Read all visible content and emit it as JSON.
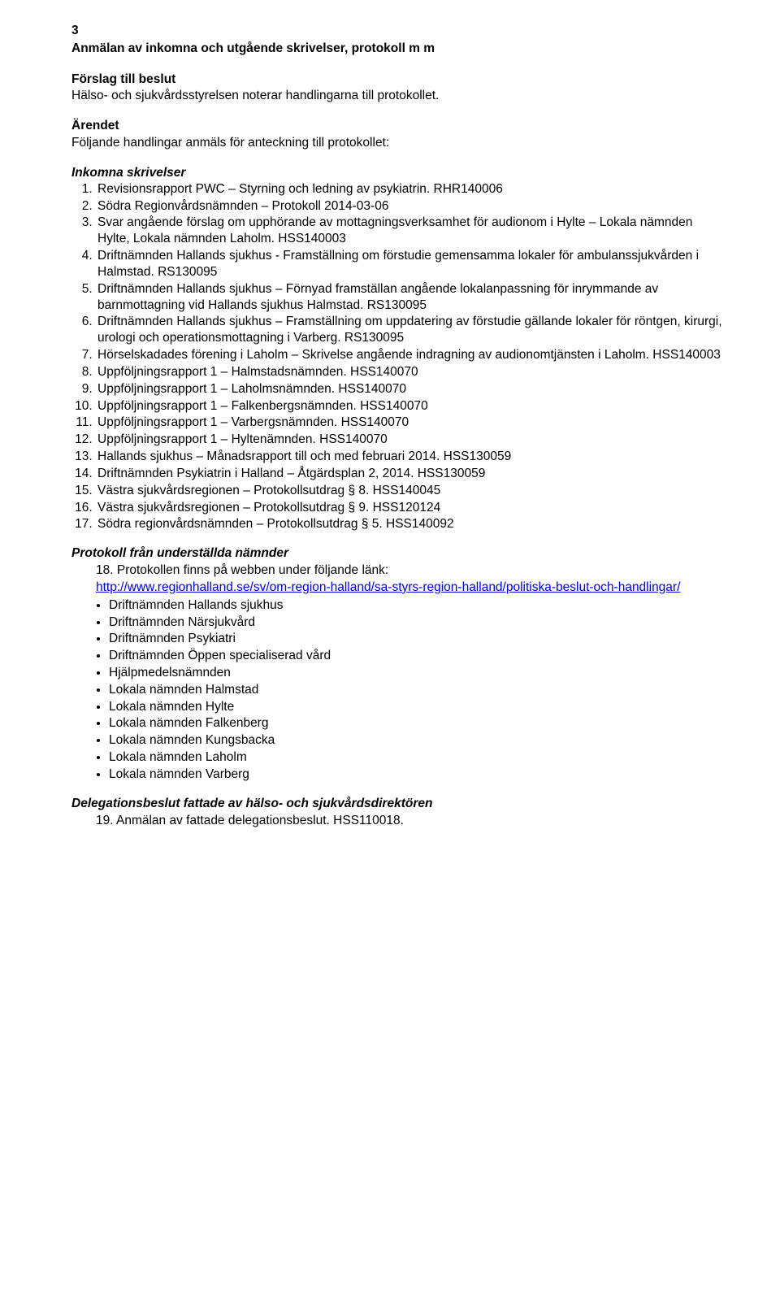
{
  "page_number": "3",
  "title": "Anmälan av inkomna och utgående skrivelser, protokoll m m",
  "forslag_head": "Förslag till beslut",
  "forslag_text": "Hälso- och sjukvårdsstyrelsen noterar handlingarna till protokollet.",
  "arendet_head": "Ärendet",
  "arendet_text": "Följande handlingar anmäls för anteckning till protokollet:",
  "inkomna_head": "Inkomna skrivelser",
  "inkomna": [
    "Revisionsrapport PWC – Styrning och ledning av psykiatrin. RHR140006",
    "Södra Regionvårdsnämnden – Protokoll 2014-03-06",
    "Svar angående förslag om upphörande av mottagningsverksamhet för audionom i Hylte – Lokala nämnden Hylte, Lokala nämnden Laholm. HSS140003",
    "Driftnämnden Hallands sjukhus - Framställning om förstudie gemensamma lokaler för ambulanssjukvården i Halmstad. RS130095",
    "Driftnämnden Hallands sjukhus – Förnyad framställan angående lokalanpassning för inrymmande av barnmottagning vid Hallands sjukhus Halmstad. RS130095",
    "Driftnämnden Hallands sjukhus – Framställning om uppdatering av förstudie gällande lokaler för röntgen, kirurgi, urologi och operationsmottagning i Varberg. RS130095",
    "Hörselskadades förening i Laholm – Skrivelse angående indragning av audionomtjänsten i Laholm. HSS140003",
    "Uppföljningsrapport 1 – Halmstadsnämnden. HSS140070",
    "Uppföljningsrapport 1 – Laholmsnämnden. HSS140070",
    "Uppföljningsrapport 1 – Falkenbergsnämnden. HSS140070",
    "Uppföljningsrapport 1 – Varbergsnämnden. HSS140070",
    "Uppföljningsrapport 1 – Hyltenämnden. HSS140070",
    "Hallands sjukhus – Månadsrapport till och med februari 2014. HSS130059",
    "Driftnämnden Psykiatrin i Halland – Åtgärdsplan 2, 2014. HSS130059",
    "Västra sjukvårdsregionen – Protokollsutdrag § 8. HSS140045",
    "Västra sjukvårdsregionen – Protokollsutdrag § 9. HSS120124",
    "Södra regionvårdsnämnden – Protokollsutdrag § 5. HSS140092"
  ],
  "protokoll_head": "Protokoll från underställda nämnder",
  "protokoll_item_prefix": "18. Protokollen finns på webben under följande länk:",
  "protokoll_link_text": "http://www.regionhalland.se/sv/om-region-halland/sa-styrs-region-halland/politiska-beslut-och-handlingar/",
  "bullets": [
    "Driftnämnden Hallands sjukhus",
    "Driftnämnden Närsjukvård",
    "Driftnämnden Psykiatri",
    "Driftnämnden Öppen specialiserad vård",
    "Hjälpmedelsnämnden",
    "Lokala nämnden Halmstad",
    "Lokala nämnden Hylte",
    "Lokala nämnden Falkenberg",
    "Lokala nämnden Kungsbacka",
    "Lokala nämnden Laholm",
    "Lokala nämnden Varberg"
  ],
  "delegation_head": "Delegationsbeslut fattade av hälso- och sjukvårdsdirektören",
  "delegation_item": "19. Anmälan av fattade delegationsbeslut. HSS110018."
}
